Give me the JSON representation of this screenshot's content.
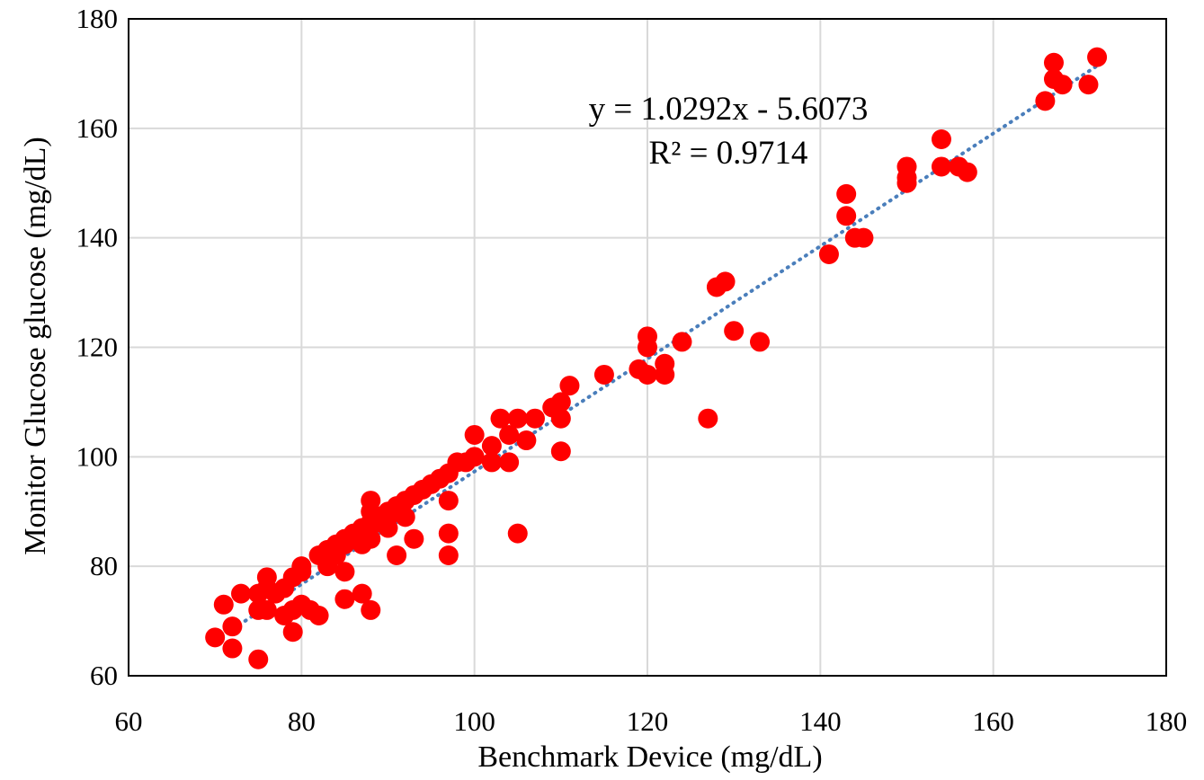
{
  "chart_data": {
    "type": "scatter",
    "title": "",
    "xlabel": "Benchmark Device (mg/dL)",
    "ylabel": "Monitor Glucose glucose (mg/dL)",
    "xlim": [
      60,
      180
    ],
    "ylim": [
      60,
      180
    ],
    "x_ticks": [
      "60",
      "80",
      "100",
      "120",
      "140",
      "160",
      "180"
    ],
    "y_ticks": [
      "60",
      "80",
      "100",
      "120",
      "140",
      "160",
      "180"
    ],
    "grid": true,
    "legend": "none",
    "trendline": {
      "style": "dotted",
      "slope": 1.0292,
      "intercept": -5.6073,
      "x_range": [
        70,
        172
      ],
      "equation_text": "y = 1.0292x - 5.6073",
      "r2_text": "R² = 0.9714"
    },
    "colors": {
      "points": "#ff0000",
      "trendline": "#4a7ebb",
      "grid": "#d9d9d9",
      "frame": "#000000"
    },
    "series": [
      {
        "points": [
          [
            70,
            67
          ],
          [
            71,
            73
          ],
          [
            72,
            65
          ],
          [
            72,
            69
          ],
          [
            73,
            75
          ],
          [
            75,
            63
          ],
          [
            75,
            72
          ],
          [
            75,
            75
          ],
          [
            76,
            72
          ],
          [
            76,
            76
          ],
          [
            76,
            78
          ],
          [
            77,
            75
          ],
          [
            78,
            71
          ],
          [
            78,
            76
          ],
          [
            79,
            68
          ],
          [
            79,
            72
          ],
          [
            79,
            78
          ],
          [
            80,
            73
          ],
          [
            80,
            79
          ],
          [
            80,
            80
          ],
          [
            81,
            72
          ],
          [
            82,
            71
          ],
          [
            82,
            82
          ],
          [
            83,
            80
          ],
          [
            83,
            83
          ],
          [
            84,
            82
          ],
          [
            84,
            84
          ],
          [
            85,
            74
          ],
          [
            85,
            79
          ],
          [
            85,
            84
          ],
          [
            85,
            85
          ],
          [
            86,
            85
          ],
          [
            86,
            86
          ],
          [
            87,
            75
          ],
          [
            87,
            84
          ],
          [
            87,
            87
          ],
          [
            88,
            72
          ],
          [
            88,
            85
          ],
          [
            88,
            88
          ],
          [
            88,
            90
          ],
          [
            88,
            92
          ],
          [
            89,
            88
          ],
          [
            89,
            89
          ],
          [
            90,
            87
          ],
          [
            90,
            89
          ],
          [
            90,
            90
          ],
          [
            91,
            82
          ],
          [
            91,
            90
          ],
          [
            91,
            91
          ],
          [
            92,
            89
          ],
          [
            92,
            92
          ],
          [
            93,
            85
          ],
          [
            93,
            93
          ],
          [
            94,
            94
          ],
          [
            95,
            95
          ],
          [
            96,
            96
          ],
          [
            97,
            82
          ],
          [
            97,
            86
          ],
          [
            97,
            92
          ],
          [
            97,
            97
          ],
          [
            98,
            99
          ],
          [
            99,
            99
          ],
          [
            100,
            100
          ],
          [
            100,
            104
          ],
          [
            102,
            99
          ],
          [
            102,
            102
          ],
          [
            103,
            107
          ],
          [
            104,
            99
          ],
          [
            104,
            104
          ],
          [
            105,
            86
          ],
          [
            105,
            107
          ],
          [
            106,
            103
          ],
          [
            107,
            107
          ],
          [
            109,
            109
          ],
          [
            110,
            101
          ],
          [
            110,
            107
          ],
          [
            110,
            110
          ],
          [
            111,
            113
          ],
          [
            115,
            115
          ],
          [
            119,
            116
          ],
          [
            120,
            115
          ],
          [
            120,
            120
          ],
          [
            120,
            122
          ],
          [
            122,
            115
          ],
          [
            122,
            117
          ],
          [
            124,
            121
          ],
          [
            127,
            107
          ],
          [
            128,
            131
          ],
          [
            129,
            132
          ],
          [
            130,
            123
          ],
          [
            133,
            121
          ],
          [
            141,
            137
          ],
          [
            143,
            144
          ],
          [
            143,
            148
          ],
          [
            144,
            140
          ],
          [
            145,
            140
          ],
          [
            150,
            150
          ],
          [
            150,
            151
          ],
          [
            150,
            153
          ],
          [
            154,
            153
          ],
          [
            154,
            158
          ],
          [
            156,
            153
          ],
          [
            157,
            152
          ],
          [
            166,
            165
          ],
          [
            167,
            169
          ],
          [
            167,
            172
          ],
          [
            168,
            168
          ],
          [
            171,
            168
          ],
          [
            172,
            173
          ]
        ]
      }
    ]
  }
}
